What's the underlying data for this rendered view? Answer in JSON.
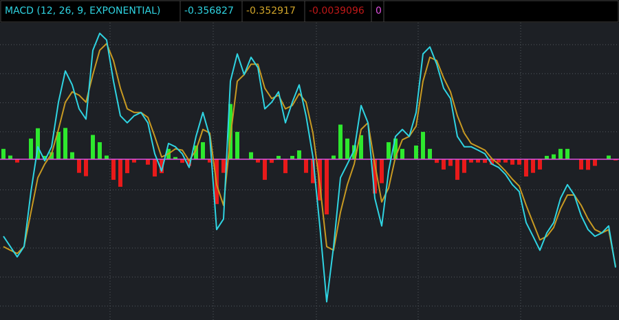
{
  "chart_data": {
    "type": "macd",
    "title": "MACD (12, 26, 9, EXPONENTIAL)",
    "header_values": [
      -0.356827,
      -0.352917,
      -0.0039096,
      0
    ],
    "header_colors": [
      "#2fd4e2",
      "#d2a62a",
      "#c01818",
      "#e050e0"
    ],
    "ylim": [
      -0.53,
      0.45
    ],
    "grid": true,
    "macd": {
      "color": "#2fd4e2",
      "values": [
        -0.254,
        -0.288,
        -0.322,
        -0.288,
        -0.107,
        0.041,
        -0.005,
        0.041,
        0.188,
        0.291,
        0.245,
        0.166,
        0.132,
        0.359,
        0.415,
        0.393,
        0.257,
        0.143,
        0.12,
        0.143,
        0.154,
        0.12,
        0.018,
        -0.039,
        0.052,
        0.041,
        0.018,
        -0.027,
        0.075,
        0.154,
        0.075,
        -0.232,
        -0.197,
        0.257,
        0.347,
        0.279,
        0.336,
        0.302,
        0.166,
        0.188,
        0.222,
        0.12,
        0.188,
        0.245,
        0.143,
        0.007,
        -0.22,
        -0.47,
        -0.288,
        -0.061,
        -0.016,
        0.03,
        0.177,
        0.12,
        -0.129,
        -0.22,
        -0.039,
        0.075,
        0.098,
        0.075,
        0.154,
        0.347,
        0.37,
        0.313,
        0.234,
        0.2,
        0.075,
        0.041,
        0.041,
        0.03,
        0.018,
        -0.016,
        -0.027,
        -0.05,
        -0.084,
        -0.107,
        -0.209,
        -0.254,
        -0.3,
        -0.243,
        -0.209,
        -0.129,
        -0.084,
        -0.118,
        -0.186,
        -0.232,
        -0.254,
        -0.243,
        -0.22,
        -0.357
      ]
    },
    "signal": {
      "color": "#c89a22",
      "values": [
        -0.288,
        -0.3,
        -0.311,
        -0.288,
        -0.175,
        -0.061,
        -0.016,
        0.018,
        0.098,
        0.188,
        0.222,
        0.211,
        0.188,
        0.279,
        0.359,
        0.381,
        0.325,
        0.234,
        0.166,
        0.154,
        0.154,
        0.138,
        0.075,
        0.007,
        0.018,
        0.034,
        0.03,
        -0.005,
        0.03,
        0.098,
        0.086,
        -0.084,
        -0.152,
        0.075,
        0.257,
        0.279,
        0.313,
        0.313,
        0.234,
        0.2,
        0.211,
        0.166,
        0.177,
        0.216,
        0.188,
        0.086,
        -0.084,
        -0.288,
        -0.3,
        -0.175,
        -0.084,
        -0.016,
        0.098,
        0.12,
        -0.016,
        -0.141,
        -0.095,
        0.007,
        0.064,
        0.075,
        0.109,
        0.257,
        0.336,
        0.325,
        0.268,
        0.222,
        0.143,
        0.086,
        0.052,
        0.041,
        0.03,
        0.002,
        -0.016,
        -0.039,
        -0.066,
        -0.089,
        -0.152,
        -0.209,
        -0.266,
        -0.254,
        -0.225,
        -0.163,
        -0.118,
        -0.118,
        -0.152,
        -0.197,
        -0.232,
        -0.243,
        -0.232,
        -0.353
      ]
    },
    "histogram": {
      "positive_color": "#2ee82e",
      "negative_color": "#e81a1a",
      "values": [
        0.034,
        0.012,
        -0.011,
        0,
        0.068,
        0.102,
        0.011,
        0.023,
        0.09,
        0.103,
        0.023,
        -0.045,
        -0.056,
        0.08,
        0.056,
        0.012,
        -0.068,
        -0.091,
        -0.046,
        -0.011,
        0,
        -0.018,
        -0.057,
        -0.046,
        0.034,
        0.007,
        -0.012,
        -0.022,
        0.045,
        0.056,
        -0.011,
        -0.148,
        -0.045,
        0.182,
        0.09,
        0,
        0.023,
        -0.011,
        -0.068,
        -0.012,
        0.011,
        -0.046,
        0.011,
        0.029,
        -0.045,
        -0.079,
        -0.136,
        -0.182,
        0.012,
        0.114,
        0.068,
        0.046,
        0.079,
        0,
        -0.113,
        -0.079,
        0.056,
        0.068,
        0.034,
        0,
        0.045,
        0.09,
        0.034,
        -0.012,
        -0.034,
        -0.022,
        -0.068,
        -0.045,
        -0.011,
        -0.011,
        -0.012,
        -0.018,
        -0.011,
        -0.011,
        -0.018,
        -0.018,
        -0.057,
        -0.045,
        -0.034,
        0.011,
        0.016,
        0.034,
        0.034,
        0,
        -0.034,
        -0.035,
        -0.022,
        0,
        0.012,
        -0.004
      ]
    }
  }
}
